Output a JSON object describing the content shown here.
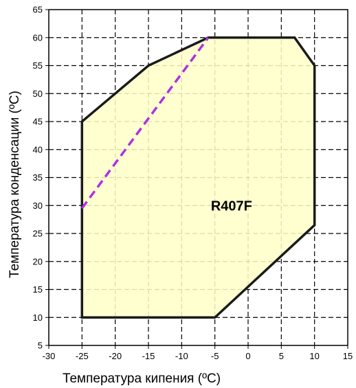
{
  "chart_data": {
    "type": "area",
    "title": "",
    "xlabel": "Температура кипения (ºC)",
    "ylabel": "Температура конденсации (ºC)",
    "xlim": [
      -30,
      15
    ],
    "ylim": [
      5,
      65
    ],
    "x_ticks": [
      -30,
      -25,
      -20,
      -15,
      -10,
      -5,
      0,
      5,
      10,
      15
    ],
    "y_ticks": [
      5,
      10,
      15,
      20,
      25,
      30,
      35,
      40,
      45,
      50,
      55,
      60,
      65
    ],
    "grid": true,
    "series": [
      {
        "name": "R407F",
        "style": "filled-polygon",
        "fill": "#ffffc8",
        "stroke": "#1a1a1a",
        "points": [
          {
            "x": -25,
            "y": 10
          },
          {
            "x": -25,
            "y": 45
          },
          {
            "x": -15,
            "y": 55
          },
          {
            "x": -6,
            "y": 60
          },
          {
            "x": 7,
            "y": 60
          },
          {
            "x": 10,
            "y": 55
          },
          {
            "x": 10,
            "y": 26.5
          },
          {
            "x": -5,
            "y": 10
          }
        ]
      },
      {
        "style": "dashed-line",
        "stroke": "#b030e0",
        "points": [
          {
            "x": -25,
            "y": 29.5
          },
          {
            "x": -6,
            "y": 60
          }
        ]
      }
    ],
    "annotations": [
      {
        "text": "R407F",
        "x": -2.5,
        "y": 30
      }
    ]
  }
}
